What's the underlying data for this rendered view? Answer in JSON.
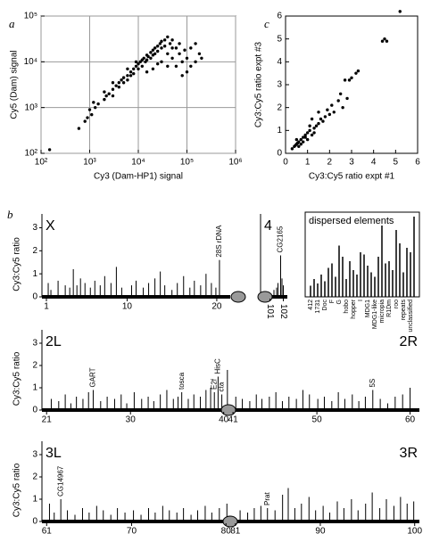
{
  "chart_data": [
    {
      "type": "scatter",
      "panel": "a",
      "xlabel": "Cy3 (Dam-HP1) signal",
      "ylabel": "Cy5 (Dam) signal",
      "xscale": "log",
      "yscale": "log",
      "grid": true,
      "color": "#000000",
      "xlim": [
        100,
        1000000
      ],
      "ylim": [
        100,
        100000
      ],
      "xticks": [
        {
          "value": 100,
          "label": "10²"
        },
        {
          "value": 1000,
          "label": "10³"
        },
        {
          "value": 10000,
          "label": "10⁴"
        },
        {
          "value": 100000,
          "label": "10⁵"
        },
        {
          "value": 1000000,
          "label": "10⁶"
        }
      ],
      "yticks": [
        {
          "value": 100,
          "label": "10²"
        },
        {
          "value": 1000,
          "label": "10³"
        },
        {
          "value": 10000,
          "label": "10⁴"
        },
        {
          "value": 100000,
          "label": "10⁵"
        }
      ],
      "x": [
        150,
        600,
        900,
        1000,
        1100,
        1300,
        1500,
        2000,
        2200,
        2500,
        3000,
        3000,
        3500,
        4000,
        4000,
        4500,
        5000,
        5000,
        6000,
        6000,
        7000,
        7000,
        8000,
        8000,
        9000,
        10000,
        10000,
        11000,
        12000,
        12000,
        13000,
        14000,
        15000,
        15000,
        16000,
        18000,
        18000,
        20000,
        20000,
        22000,
        22000,
        25000,
        25000,
        28000,
        30000,
        30000,
        35000,
        35000,
        40000,
        40000,
        45000,
        50000,
        50000,
        60000,
        60000,
        70000,
        70000,
        80000,
        80000,
        90000,
        100000,
        100000,
        120000,
        120000,
        150000,
        150000,
        180000,
        200000,
        40000,
        30000,
        25000,
        20000,
        15000,
        50000,
        3000,
        2000,
        800,
        1200,
        6000,
        9000
      ],
      "values": [
        120,
        350,
        600,
        900,
        700,
        1000,
        1200,
        1500,
        1800,
        2000,
        2500,
        1800,
        3000,
        2800,
        3500,
        4000,
        3500,
        4500,
        5000,
        4000,
        6000,
        5000,
        7000,
        5500,
        8000,
        9000,
        7000,
        10000,
        11000,
        8000,
        12000,
        10000,
        14000,
        11000,
        13000,
        16000,
        12000,
        18000,
        14000,
        20000,
        15000,
        22000,
        17000,
        25000,
        28000,
        20000,
        30000,
        22000,
        35000,
        15000,
        25000,
        30000,
        12000,
        20000,
        8000,
        15000,
        25000,
        10000,
        5000,
        18000,
        12000,
        6000,
        20000,
        8000,
        25000,
        10000,
        15000,
        12000,
        8000,
        10000,
        9000,
        7000,
        6000,
        20000,
        3500,
        2200,
        500,
        1300,
        7000,
        10000
      ]
    },
    {
      "type": "scatter",
      "panel": "c",
      "xlabel": "Cy3:Cy5 ratio expt #1",
      "ylabel": "Cy3:Cy5 ratio expt #3",
      "grid": false,
      "color": "#000000",
      "xlim": [
        0,
        6
      ],
      "ylim": [
        0,
        6
      ],
      "xticks": [
        0,
        1,
        2,
        3,
        4,
        5,
        6
      ],
      "yticks": [
        0,
        1,
        2,
        3,
        4,
        5,
        6
      ],
      "x": [
        0.4,
        0.5,
        0.6,
        0.5,
        0.7,
        0.8,
        0.9,
        1.0,
        0.6,
        0.7,
        0.8,
        0.9,
        1.0,
        1.1,
        1.2,
        1.1,
        1.3,
        1.4,
        1.5,
        1.2,
        1.6,
        1.8,
        1.9,
        2.0,
        2.1,
        2.2,
        1.5,
        2.4,
        2.5,
        2.6,
        2.8,
        2.7,
        2.9,
        3.0,
        3.3,
        3.2,
        4.4,
        4.5,
        4.6,
        5.2,
        0.3,
        0.45,
        0.55,
        1.3,
        1.7
      ],
      "values": [
        0.3,
        0.4,
        0.5,
        0.6,
        0.6,
        0.7,
        0.8,
        0.9,
        0.3,
        0.4,
        0.5,
        0.7,
        0.6,
        1.0,
        0.8,
        1.2,
        1.1,
        1.2,
        1.3,
        1.5,
        1.5,
        1.6,
        1.9,
        1.7,
        2.1,
        1.8,
        1.8,
        2.3,
        2.6,
        2.0,
        2.4,
        3.2,
        3.2,
        3.3,
        3.6,
        3.5,
        4.9,
        5.0,
        4.9,
        6.2,
        0.2,
        0.35,
        0.45,
        0.9,
        1.4
      ]
    },
    {
      "type": "spikes",
      "panel": "b",
      "labels": [
        "X"
      ],
      "ylabel": "Cy3:Cy5 ratio",
      "xlim": [
        0.5,
        21.5
      ],
      "xticks": [
        1,
        10,
        20
      ],
      "ylim": [
        0,
        3.6
      ],
      "yticks": [
        0,
        1,
        2,
        3
      ],
      "x": [
        1.2,
        1.5,
        2.3,
        3.1,
        3.6,
        4.0,
        4.4,
        4.8,
        5.3,
        5.9,
        6.4,
        7.0,
        7.5,
        8.2,
        8.8,
        9.4,
        10.5,
        11.0,
        11.8,
        12.4,
        13.1,
        13.7,
        14.2,
        15.0,
        15.6,
        16.3,
        17.0,
        17.5,
        18.2,
        18.8,
        19.4,
        19.9,
        20.3
      ],
      "values": [
        0.6,
        0.3,
        0.7,
        0.5,
        0.4,
        1.2,
        0.5,
        0.8,
        0.6,
        0.4,
        0.7,
        0.5,
        0.9,
        0.6,
        1.3,
        0.4,
        0.5,
        0.7,
        0.4,
        0.6,
        0.8,
        1.1,
        0.5,
        0.3,
        0.6,
        0.9,
        0.4,
        0.7,
        0.5,
        1.0,
        0.6,
        0.4,
        1.6
      ],
      "annotations": [
        {
          "text": "28S rDNA",
          "x": 20.3
        }
      ]
    },
    {
      "type": "spikes",
      "labels": [
        "4"
      ],
      "xlim": [
        100.3,
        102.3
      ],
      "xticks": [
        101,
        102
      ],
      "ylim": [
        0,
        3.6
      ],
      "x": [
        101.3,
        101.5,
        101.6,
        101.8,
        101.9,
        102.0
      ],
      "values": [
        0.3,
        0.4,
        0.6,
        1.8,
        0.8,
        0.5
      ],
      "annotations": [
        {
          "text": "CG2165",
          "x": 101.8
        }
      ]
    },
    {
      "type": "bar",
      "title": "dispersed elements",
      "ylim": [
        0,
        3.8
      ],
      "categories": [
        "412",
        null,
        "1731",
        null,
        "Doc",
        null,
        "F",
        null,
        "G",
        null,
        "hobo",
        null,
        "hopper",
        null,
        "I",
        null,
        "MDG1",
        null,
        "MDG1-like",
        null,
        "micropia",
        null,
        "R1Dm",
        null,
        "roo",
        null,
        "repeats",
        null,
        "unclassified",
        null
      ],
      "values": [
        0.5,
        0.8,
        0.6,
        1.0,
        0.7,
        1.3,
        1.5,
        0.9,
        2.3,
        1.8,
        0.8,
        1.6,
        1.2,
        1.0,
        2.0,
        1.9,
        1.4,
        1.1,
        0.9,
        1.8,
        3.2,
        1.5,
        1.6,
        1.2,
        3.0,
        2.4,
        1.1,
        2.2,
        2.0,
        3.6
      ]
    },
    {
      "type": "spikes",
      "labels": [
        "2L",
        "2R"
      ],
      "ylabel": "Cy3:Cy5 ratio",
      "xlim": [
        20.5,
        61
      ],
      "xticks": [
        21,
        30,
        40,
        41,
        50,
        60
      ],
      "ylim": [
        0,
        3.6
      ],
      "yticks": [
        0,
        1,
        2,
        3
      ],
      "x": [
        21.5,
        22.3,
        23.0,
        23.6,
        24.2,
        24.9,
        25.5,
        26.0,
        26.8,
        27.5,
        28.3,
        29.0,
        29.6,
        30.4,
        31.2,
        31.9,
        32.5,
        33.2,
        33.9,
        34.6,
        35.1,
        35.5,
        36.2,
        36.8,
        37.5,
        38.1,
        38.6,
        39.0,
        39.4,
        39.8,
        40.4,
        41.3,
        42.0,
        42.8,
        43.5,
        44.1,
        44.9,
        45.6,
        46.3,
        47.0,
        47.8,
        48.5,
        49.2,
        50.1,
        50.8,
        51.6,
        52.3,
        53.0,
        53.8,
        54.5,
        55.2,
        56.0,
        56.8,
        57.6,
        58.4,
        59.2,
        60.0
      ],
      "values": [
        0.5,
        0.4,
        0.7,
        0.3,
        0.6,
        0.5,
        0.8,
        0.9,
        0.4,
        0.6,
        0.5,
        0.7,
        0.3,
        0.8,
        0.5,
        0.6,
        0.4,
        0.7,
        0.9,
        0.5,
        0.6,
        0.8,
        0.5,
        0.7,
        0.6,
        0.9,
        1.0,
        0.8,
        1.5,
        0.7,
        1.8,
        0.6,
        0.5,
        0.4,
        0.7,
        0.5,
        0.6,
        0.8,
        0.4,
        0.6,
        0.5,
        0.9,
        0.7,
        0.5,
        0.6,
        0.4,
        0.8,
        0.5,
        0.7,
        0.4,
        0.6,
        0.9,
        0.5,
        0.3,
        0.6,
        0.7,
        1.0
      ],
      "annotations": [
        {
          "text": "GART",
          "x": 26.0
        },
        {
          "text": "tosca",
          "x": 35.5
        },
        {
          "text": "E2f",
          "x": 39.0
        },
        {
          "text": "HisC",
          "x": 39.4
        },
        {
          "text": "cta",
          "x": 39.8
        },
        {
          "text": "5S",
          "x": 56.0
        }
      ]
    },
    {
      "type": "spikes",
      "labels": [
        "3L",
        "3R"
      ],
      "ylabel": "Cy3:Cy5 ratio",
      "xlim": [
        60.5,
        100.5
      ],
      "xticks": [
        61,
        70,
        80,
        81,
        90,
        100
      ],
      "ylim": [
        0,
        3.6
      ],
      "yticks": [
        0,
        1,
        2,
        3
      ],
      "x": [
        61.3,
        61.8,
        62.5,
        63.2,
        64.0,
        64.8,
        65.5,
        66.3,
        67.0,
        67.8,
        68.5,
        69.3,
        70.2,
        71.0,
        71.8,
        72.5,
        73.3,
        74.0,
        74.8,
        75.5,
        76.3,
        77.0,
        77.8,
        78.5,
        79.3,
        80.1,
        81.5,
        82.3,
        83.0,
        83.7,
        84.4,
        85.2,
        86.0,
        86.6,
        87.3,
        88.0,
        88.8,
        89.5,
        90.3,
        91.0,
        91.8,
        92.5,
        93.3,
        94.0,
        94.8,
        95.5,
        96.3,
        97.0,
        97.8,
        98.5,
        99.2,
        99.9
      ],
      "values": [
        0.8,
        0.4,
        1.0,
        0.5,
        0.3,
        0.6,
        0.4,
        0.7,
        0.5,
        0.3,
        0.6,
        0.4,
        0.5,
        0.3,
        0.6,
        0.4,
        0.7,
        0.5,
        0.4,
        0.6,
        0.3,
        0.5,
        0.7,
        0.4,
        0.6,
        0.8,
        0.5,
        0.4,
        0.6,
        0.7,
        0.6,
        0.5,
        1.2,
        1.5,
        0.6,
        0.8,
        1.1,
        0.5,
        0.7,
        0.4,
        0.9,
        0.6,
        1.0,
        0.5,
        0.8,
        1.3,
        0.6,
        1.0,
        0.7,
        1.1,
        0.8,
        0.9
      ],
      "annotations": [
        {
          "text": "CG14967",
          "x": 62.5
        },
        {
          "text": "Prat",
          "x": 84.4
        }
      ]
    }
  ]
}
